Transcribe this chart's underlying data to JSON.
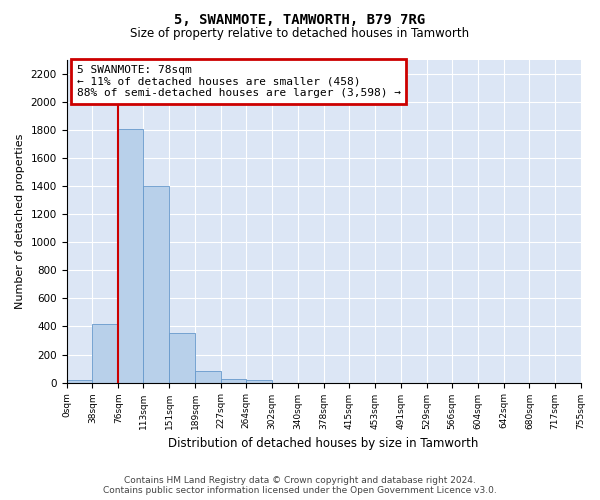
{
  "title": "5, SWANMOTE, TAMWORTH, B79 7RG",
  "subtitle": "Size of property relative to detached houses in Tamworth",
  "xlabel": "Distribution of detached houses by size in Tamworth",
  "ylabel": "Number of detached properties",
  "property_label": "5 SWANMOTE: 78sqm",
  "annotation_line1": "← 11% of detached houses are smaller (458)",
  "annotation_line2": "88% of semi-detached houses are larger (3,598) →",
  "footer1": "Contains HM Land Registry data © Crown copyright and database right 2024.",
  "footer2": "Contains public sector information licensed under the Open Government Licence v3.0.",
  "bin_edges": [
    0,
    38,
    76,
    113,
    151,
    189,
    227,
    264,
    302,
    340,
    378,
    415,
    453,
    491,
    529,
    566,
    604,
    642,
    680,
    717,
    755
  ],
  "bar_heights": [
    20,
    420,
    1810,
    1400,
    350,
    80,
    25,
    20,
    0,
    0,
    0,
    0,
    0,
    0,
    0,
    0,
    0,
    0,
    0,
    0
  ],
  "bar_color": "#b8d0ea",
  "bar_edge_color": "#6699cc",
  "vline_color": "#cc0000",
  "vline_x": 76,
  "annotation_box_color": "#cc0000",
  "ylim": [
    0,
    2300
  ],
  "ytick_max": 2200,
  "ytick_interval": 200,
  "plot_bg_color": "#dce6f5"
}
